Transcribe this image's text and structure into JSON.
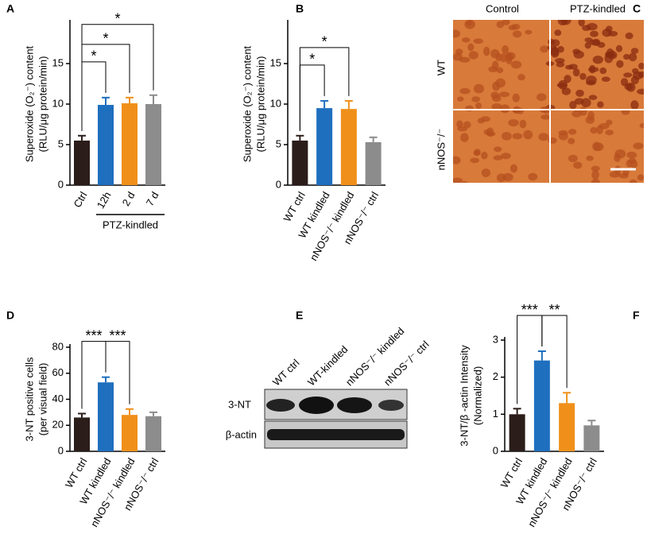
{
  "chart_data": [
    {
      "type": "bar",
      "letter": "A",
      "ylabel": [
        "Superoxide (O₂⁻) content",
        "(RLU/μg protein/min)"
      ],
      "categories": [
        "Ctrl",
        "12h",
        "2 d",
        "7 d"
      ],
      "values": [
        5.5,
        9.9,
        10.1,
        10.0
      ],
      "errors": [
        0.6,
        0.9,
        0.7,
        1.1
      ],
      "colors": [
        "#2b1d1a",
        "#1f6fbf",
        "#f0901a",
        "#8c8c8c"
      ],
      "ylim": [
        0,
        20
      ],
      "yticks": [
        0,
        5,
        10,
        15
      ],
      "annotations": [
        {
          "from": 0,
          "to": 1,
          "label": "*"
        },
        {
          "from": 0,
          "to": 2,
          "label": "*"
        },
        {
          "from": 0,
          "to": 3,
          "label": "*"
        }
      ],
      "group": {
        "label": "PTZ-kindled",
        "from": 1,
        "to": 3
      }
    },
    {
      "type": "bar",
      "letter": "B",
      "ylabel": [
        "Superoxide (O₂⁻) content",
        "(RLU/μg protein/min)"
      ],
      "categories": [
        "WT ctrl",
        "WT kindled",
        "nNOS⁻/⁻ kindled",
        "nNOS⁻/⁻ ctrl"
      ],
      "values": [
        5.5,
        9.5,
        9.4,
        5.3
      ],
      "errors": [
        0.6,
        0.9,
        1.0,
        0.6
      ],
      "colors": [
        "#2b1d1a",
        "#1f6fbf",
        "#f0901a",
        "#8c8c8c"
      ],
      "ylim": [
        0,
        20
      ],
      "yticks": [
        0,
        5,
        10,
        15
      ],
      "annotations": [
        {
          "from": 0,
          "to": 1,
          "label": "*"
        },
        {
          "from": 0,
          "to": 2,
          "label": "*"
        }
      ]
    },
    {
      "type": "bar",
      "letter": "D",
      "ylabel": [
        "3-NT positive cells",
        "(per visual field)"
      ],
      "categories": [
        "WT ctrl",
        "WT kindled",
        "nNOS⁻/⁻ kindled",
        "nNOS⁻/⁻ ctrl"
      ],
      "values": [
        26,
        53,
        28,
        27
      ],
      "errors": [
        3,
        4,
        4.5,
        3
      ],
      "colors": [
        "#2b1d1a",
        "#1f6fbf",
        "#f0901a",
        "#8c8c8c"
      ],
      "ylim": [
        0,
        80
      ],
      "yticks": [
        0,
        20,
        40,
        60,
        80
      ],
      "annotations": [
        {
          "from": 0,
          "to": 1,
          "label": "***"
        },
        {
          "from": 1,
          "to": 2,
          "label": "***"
        }
      ]
    },
    {
      "type": "bar",
      "letter": "F",
      "ylabel": [
        "3-NT/β -actin Intensity",
        "(Normalized)"
      ],
      "categories": [
        "WT ctrl",
        "WT kindled",
        "nNOS⁻/⁻ kindled",
        "nNOS⁻/⁻ ctrl"
      ],
      "values": [
        1.0,
        2.45,
        1.3,
        0.7
      ],
      "errors": [
        0.15,
        0.25,
        0.28,
        0.13
      ],
      "colors": [
        "#2b1d1a",
        "#1f6fbf",
        "#f0901a",
        "#8c8c8c"
      ],
      "ylim": [
        0,
        3
      ],
      "yticks": [
        0,
        1,
        2,
        3
      ],
      "annotations": [
        {
          "from": 0,
          "to": 1,
          "label": "***"
        },
        {
          "from": 1,
          "to": 2,
          "label": "**"
        }
      ]
    }
  ],
  "micrographs": {
    "letter": "C",
    "columns": [
      "Control",
      "PTZ-kindled"
    ],
    "rows": [
      "WT",
      "nNOS⁻/⁻"
    ]
  },
  "blot": {
    "letter": "E",
    "lanes": [
      "WT ctrl",
      "WT-kindled",
      "nNOS⁻/⁻ kindled",
      "nNOS⁻/⁻ ctrl"
    ],
    "bands": [
      "3-NT",
      "β-actin"
    ]
  }
}
